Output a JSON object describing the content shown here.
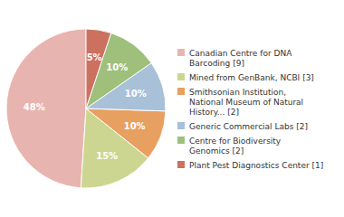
{
  "chart_data": {
    "type": "pie",
    "categories": [
      "Canadian Centre for DNA\nBarcoding [9]",
      "Mined from GenBank, NCBI [3]",
      "Smithsonian Institution,\nNational Museum of Natural\nHistory... [2]",
      "Generic Commercial Labs [2]",
      "Centre for Biodiversity\nGenomics [2]",
      "Plant Pest Diagnostics Center [1]"
    ],
    "values": [
      48,
      15,
      10,
      10,
      10,
      5
    ],
    "value_labels": [
      "48%",
      "15%",
      "10%",
      "10%",
      "10%",
      "5%"
    ],
    "colors": [
      "#e8b4b0",
      "#cdd690",
      "#e8a060",
      "#a8c0d8",
      "#9ec07a",
      "#cc7060"
    ],
    "data_labels": true,
    "legend": "right"
  }
}
